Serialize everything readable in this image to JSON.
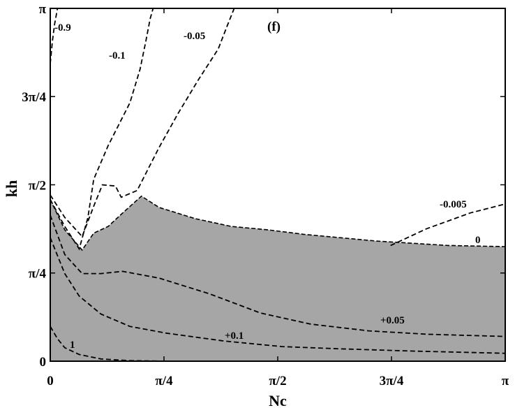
{
  "chart_data": {
    "type": "line",
    "panel_label": "(f)",
    "xlabel": "Nc",
    "ylabel": "kh",
    "xlim": [
      0,
      3.14159
    ],
    "ylim": [
      0,
      3.14159
    ],
    "x_ticks": [
      {
        "value": 0,
        "label": "0"
      },
      {
        "value": 0.7854,
        "label": "π/4"
      },
      {
        "value": 1.5708,
        "label": "π/2"
      },
      {
        "value": 2.3562,
        "label": "3π/4"
      },
      {
        "value": 3.1416,
        "label": "π"
      }
    ],
    "y_ticks": [
      {
        "value": 0,
        "label": "0"
      },
      {
        "value": 0.7854,
        "label": "π/4"
      },
      {
        "value": 1.5708,
        "label": "π/2"
      },
      {
        "value": 2.3562,
        "label": "3π/4"
      },
      {
        "value": 3.1416,
        "label": "π"
      }
    ],
    "grid": false,
    "colors": {
      "shaded_region": "#a6a6a6",
      "contour_line": "#000000"
    },
    "shaded_region": {
      "description_value": "0",
      "boundary": [
        [
          0.0,
          1.44
        ],
        [
          0.1,
          1.17
        ],
        [
          0.22,
          0.99
        ],
        [
          0.3,
          1.14
        ],
        [
          0.4,
          1.2
        ],
        [
          0.5,
          1.32
        ],
        [
          0.63,
          1.47
        ],
        [
          0.75,
          1.37
        ],
        [
          1.0,
          1.27
        ],
        [
          1.25,
          1.2
        ],
        [
          1.5,
          1.17
        ],
        [
          1.75,
          1.13
        ],
        [
          2.0,
          1.1
        ],
        [
          2.25,
          1.07
        ],
        [
          2.5,
          1.05
        ],
        [
          2.75,
          1.03
        ],
        [
          3.1416,
          1.02
        ]
      ]
    },
    "series": [
      {
        "name": "-0.9",
        "label": "-0.9",
        "points": [
          [
            0.0,
            2.65
          ],
          [
            0.015,
            2.85
          ],
          [
            0.03,
            3.0
          ],
          [
            0.05,
            3.1416
          ]
        ]
      },
      {
        "name": "-0.1",
        "label": "-0.1",
        "points": [
          [
            0.0,
            1.44
          ],
          [
            0.1,
            1.2
          ],
          [
            0.2,
            1.0
          ],
          [
            0.26,
            1.28
          ],
          [
            0.3,
            1.62
          ],
          [
            0.4,
            1.92
          ],
          [
            0.55,
            2.3
          ],
          [
            0.62,
            2.6
          ],
          [
            0.66,
            2.85
          ],
          [
            0.69,
            3.05
          ],
          [
            0.71,
            3.1416
          ]
        ]
      },
      {
        "name": "-0.05",
        "label": "-0.05",
        "points": [
          [
            0.0,
            1.48
          ],
          [
            0.1,
            1.28
          ],
          [
            0.22,
            1.11
          ],
          [
            0.3,
            1.38
          ],
          [
            0.36,
            1.57
          ],
          [
            0.45,
            1.56
          ],
          [
            0.49,
            1.46
          ],
          [
            0.6,
            1.52
          ],
          [
            0.75,
            1.9
          ],
          [
            0.88,
            2.2
          ],
          [
            1.02,
            2.5
          ],
          [
            1.16,
            2.78
          ],
          [
            1.22,
            2.98
          ],
          [
            1.27,
            3.1416
          ]
        ]
      },
      {
        "name": "-0.005",
        "label": "-0.005",
        "points": [
          [
            2.35,
            1.03
          ],
          [
            2.6,
            1.18
          ],
          [
            2.9,
            1.32
          ],
          [
            3.1416,
            1.4
          ]
        ]
      },
      {
        "name": "+0.05",
        "label": "+0.05",
        "points": [
          [
            0.0,
            1.3
          ],
          [
            0.1,
            0.95
          ],
          [
            0.22,
            0.78
          ],
          [
            0.35,
            0.78
          ],
          [
            0.5,
            0.8
          ],
          [
            0.75,
            0.74
          ],
          [
            1.1,
            0.6
          ],
          [
            1.45,
            0.43
          ],
          [
            1.8,
            0.33
          ],
          [
            2.2,
            0.27
          ],
          [
            2.6,
            0.24
          ],
          [
            3.1416,
            0.22
          ]
        ]
      },
      {
        "name": "+0.1",
        "label": "+0.1",
        "points": [
          [
            0.0,
            1.1
          ],
          [
            0.1,
            0.78
          ],
          [
            0.2,
            0.58
          ],
          [
            0.35,
            0.42
          ],
          [
            0.55,
            0.31
          ],
          [
            0.8,
            0.25
          ],
          [
            1.2,
            0.18
          ],
          [
            1.6,
            0.13
          ],
          [
            2.0,
            0.11
          ],
          [
            2.5,
            0.09
          ],
          [
            3.1416,
            0.07
          ]
        ]
      },
      {
        "name": "1",
        "label": "1",
        "points": [
          [
            0.0,
            0.31
          ],
          [
            0.05,
            0.2
          ],
          [
            0.1,
            0.12
          ],
          [
            0.2,
            0.06
          ],
          [
            0.35,
            0.02
          ],
          [
            0.55,
            0.005
          ],
          [
            0.8,
            0.0
          ]
        ]
      }
    ]
  }
}
